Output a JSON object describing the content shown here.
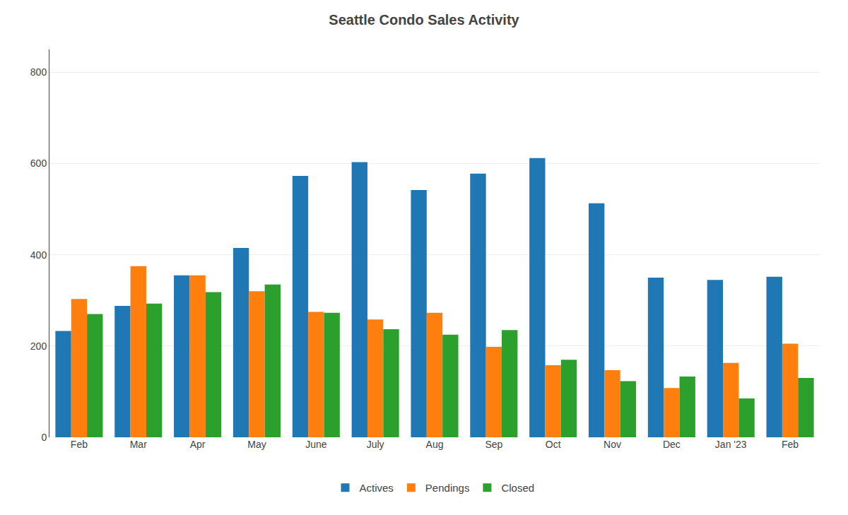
{
  "chart_data": {
    "type": "bar",
    "title": "Seattle Condo Sales Activity",
    "categories": [
      "Feb",
      "Mar",
      "Apr",
      "May",
      "June",
      "July",
      "Aug",
      "Sep",
      "Oct",
      "Nov",
      "Dec",
      "Jan '23",
      "Feb"
    ],
    "series": [
      {
        "name": "Actives",
        "values": [
          233,
          288,
          355,
          415,
          573,
          603,
          542,
          578,
          612,
          513,
          350,
          345,
          352
        ]
      },
      {
        "name": "Pendings",
        "values": [
          303,
          375,
          355,
          320,
          275,
          258,
          273,
          198,
          158,
          147,
          108,
          163,
          205
        ]
      },
      {
        "name": "Closed",
        "values": [
          270,
          293,
          318,
          335,
          273,
          237,
          225,
          235,
          170,
          123,
          133,
          85,
          130
        ]
      }
    ],
    "ylim": [
      0,
      850
    ],
    "yticks": [
      0,
      200,
      400,
      600,
      800
    ],
    "grid": true,
    "legend": "bottom"
  }
}
